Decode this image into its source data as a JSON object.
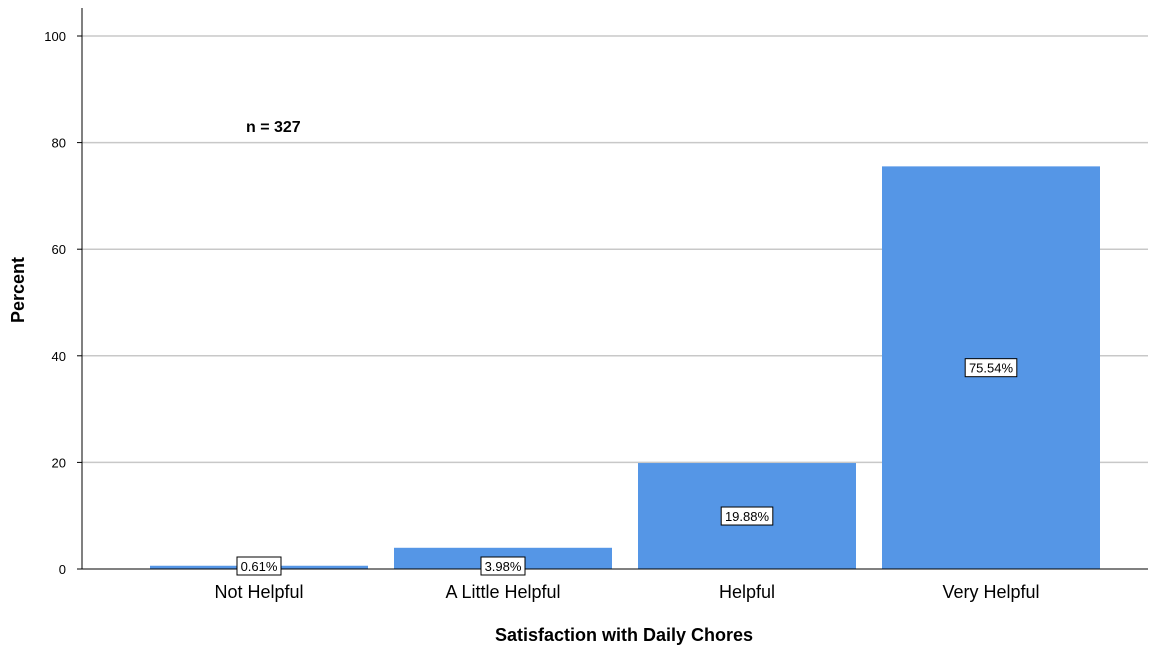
{
  "chart_data": {
    "type": "bar",
    "title": "",
    "xlabel": "Satisfaction with Daily Chores",
    "ylabel": "Percent",
    "categories": [
      "Not Helpful",
      "A Little Helpful",
      "Helpful",
      "Very Helpful"
    ],
    "values": [
      0.61,
      3.98,
      19.88,
      75.54
    ],
    "data_labels": [
      "0.61%",
      "3.98%",
      "19.88%",
      "75.54%"
    ],
    "ylim": [
      0,
      100
    ],
    "yticks": [
      0,
      20,
      40,
      60,
      80,
      100
    ],
    "grid": true,
    "annotation": "n = 327",
    "colors": {
      "bar": "#5596e6",
      "grid": "#c8c8c8",
      "axis": "#000000"
    }
  }
}
